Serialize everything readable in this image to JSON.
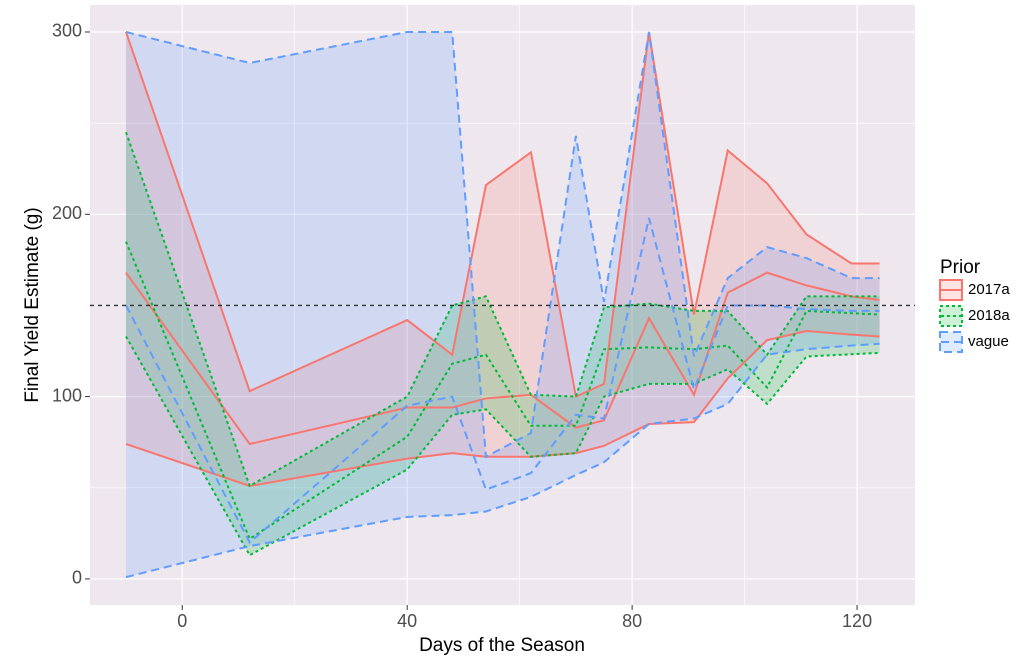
{
  "chart_data": {
    "type": "ribbon",
    "x_label": "Days of the Season",
    "y_label": "Final Yield Estimate (g)",
    "xlim": [
      -16.4,
      130.3
    ],
    "ylim": [
      -14.3,
      314.8
    ],
    "xticks": [
      0,
      40,
      80,
      120
    ],
    "xminor": [
      20,
      60,
      100
    ],
    "yticks": [
      0,
      100,
      200,
      300
    ],
    "yminor": [
      50,
      150,
      250
    ],
    "grid": true,
    "hline": 150,
    "legend_title": "Prior",
    "legend_position": "right",
    "series": [
      {
        "name": "2017a",
        "color": "#F8766D",
        "dash": "solid",
        "x": [
          -10,
          12,
          40,
          48,
          54,
          62,
          70,
          75,
          83,
          91,
          97,
          104,
          111,
          119,
          124
        ],
        "upper": [
          300,
          103,
          142,
          123,
          216,
          234,
          100,
          107,
          300,
          145,
          235,
          217,
          189,
          173,
          173
        ],
        "median": [
          168,
          74,
          94,
          94,
          99,
          101,
          83,
          87,
          143,
          101,
          157,
          168,
          161,
          155,
          153
        ],
        "lower": [
          74,
          51,
          66,
          69,
          67,
          67,
          69,
          73,
          85,
          86,
          110,
          131,
          136,
          134,
          133
        ]
      },
      {
        "name": "2018a",
        "color": "#00BA38",
        "dash": "dotted",
        "x": [
          -10,
          12,
          40,
          48,
          54,
          62,
          70,
          75,
          83,
          91,
          97,
          104,
          111,
          124
        ],
        "upper": [
          245,
          51,
          100,
          150,
          155,
          101,
          100,
          149,
          151,
          147,
          147,
          123,
          155,
          155
        ],
        "median": [
          185,
          22,
          78,
          118,
          123,
          84,
          84,
          126,
          127,
          126,
          128,
          105,
          147,
          145
        ],
        "lower": [
          133,
          13,
          60,
          90,
          93,
          67,
          69,
          100,
          107,
          107,
          115,
          96,
          122,
          124
        ]
      },
      {
        "name": "vague",
        "color": "#619CFF",
        "dash": "dashed",
        "x": [
          -10,
          12,
          40,
          48,
          54,
          62,
          70,
          75,
          83,
          91,
          97,
          104,
          111,
          119,
          124
        ],
        "upper": [
          300,
          283,
          300,
          300,
          67,
          80,
          243,
          152,
          300,
          122,
          165,
          182,
          176,
          165,
          165
        ],
        "median": [
          150,
          20,
          95,
          100,
          49,
          58,
          90,
          88,
          198,
          104,
          150,
          150,
          148,
          147,
          147
        ],
        "lower": [
          1,
          18,
          34,
          35,
          37,
          45,
          57,
          64,
          85,
          88,
          96,
          123,
          126,
          128,
          129
        ]
      }
    ]
  }
}
